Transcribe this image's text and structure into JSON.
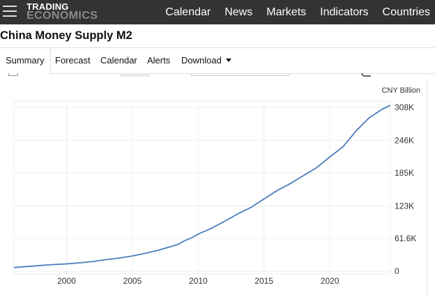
{
  "header": {
    "logo_line1": "TRADING",
    "logo_line2": "ECONOMICS",
    "nav": [
      "Calendar",
      "News",
      "Markets",
      "Indicators",
      "Countries"
    ]
  },
  "page": {
    "title": "China Money Supply M2"
  },
  "tabs": {
    "summary": "Summary",
    "forecast": "Forecast",
    "calendar": "Calendar",
    "alerts": "Alerts",
    "download": "Download"
  },
  "chart_data": {
    "type": "line",
    "unit": "CNY Billion",
    "x_ticks": [
      2000,
      2005,
      2010,
      2015,
      2020
    ],
    "y_ticks": [
      {
        "value": 0,
        "label": "0"
      },
      {
        "value": 61600,
        "label": "61.6K"
      },
      {
        "value": 123000,
        "label": "123K"
      },
      {
        "value": 185000,
        "label": "185K"
      },
      {
        "value": 246000,
        "label": "246K"
      },
      {
        "value": 308000,
        "label": "308K"
      }
    ],
    "xlim": [
      1996.0,
      2024.6
    ],
    "ylim": [
      -5000,
      320000
    ],
    "grid": true,
    "color": "#4a7ebb",
    "x": [
      1996.0,
      1997.0,
      1998.0,
      1999.0,
      2000.0,
      2001.0,
      2002.0,
      2003.0,
      2004.0,
      2005.0,
      2006.0,
      2007.0,
      2008.0,
      2008.5,
      2009.0,
      2009.5,
      2010.0,
      2011.0,
      2012.0,
      2013.0,
      2014.0,
      2015.0,
      2016.0,
      2017.0,
      2018.0,
      2019.0,
      2020.0,
      2021.0,
      2022.0,
      2023.0,
      2024.0,
      2024.6
    ],
    "y": [
      7000,
      9000,
      11000,
      12700,
      14000,
      16000,
      18500,
      22000,
      25000,
      29000,
      34000,
      40000,
      47000,
      51000,
      58000,
      63000,
      70000,
      81000,
      94000,
      108000,
      120000,
      136000,
      152000,
      165000,
      180000,
      195000,
      215000,
      234000,
      264000,
      289000,
      305000,
      312000
    ]
  }
}
